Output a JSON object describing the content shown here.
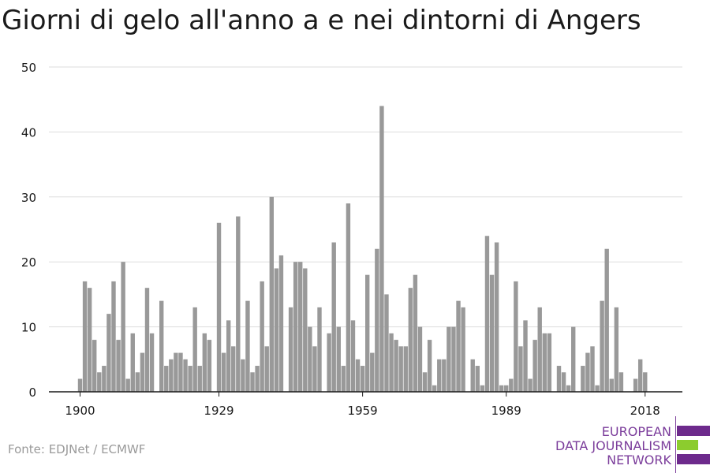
{
  "title": "Giorni di gelo all'anno a e nei dintorni di Angers",
  "source": "Fonte: EDJNet / ECMWF",
  "logo": {
    "line1": "EUROPEAN",
    "line2": "DATA JOURNALISM",
    "line3": "NETWORK",
    "colors": {
      "purple": "#6d2a8c",
      "green": "#8ccc2e",
      "text": "#7b3d9b"
    }
  },
  "colors": {
    "bar": "#999999",
    "grid": "#dddddd",
    "axis": "#1a1a1a"
  },
  "chart_data": {
    "type": "bar",
    "title": "Giorni di gelo all'anno a e nei dintorni di Angers",
    "xlabel": "",
    "ylabel": "",
    "x_range": [
      1900,
      2018
    ],
    "ylim": [
      0,
      50
    ],
    "yticks": [
      0,
      10,
      20,
      30,
      40,
      50
    ],
    "xticks": [
      1900,
      1929,
      1959,
      1989,
      2018
    ],
    "grid": true,
    "x": [
      1900,
      1901,
      1902,
      1903,
      1904,
      1905,
      1906,
      1907,
      1908,
      1909,
      1910,
      1911,
      1912,
      1913,
      1914,
      1915,
      1916,
      1917,
      1918,
      1919,
      1920,
      1921,
      1922,
      1923,
      1924,
      1925,
      1926,
      1927,
      1928,
      1929,
      1930,
      1931,
      1932,
      1933,
      1934,
      1935,
      1936,
      1937,
      1938,
      1939,
      1940,
      1941,
      1942,
      1943,
      1944,
      1945,
      1946,
      1947,
      1948,
      1949,
      1950,
      1951,
      1952,
      1953,
      1954,
      1955,
      1956,
      1957,
      1958,
      1959,
      1960,
      1961,
      1962,
      1963,
      1964,
      1965,
      1966,
      1967,
      1968,
      1969,
      1970,
      1971,
      1972,
      1973,
      1974,
      1975,
      1976,
      1977,
      1978,
      1979,
      1980,
      1981,
      1982,
      1983,
      1984,
      1985,
      1986,
      1987,
      1988,
      1989,
      1990,
      1991,
      1992,
      1993,
      1994,
      1995,
      1996,
      1997,
      1998,
      1999,
      2000,
      2001,
      2002,
      2003,
      2004,
      2005,
      2006,
      2007,
      2008,
      2009,
      2010,
      2011,
      2012,
      2013,
      2014,
      2015,
      2016,
      2017,
      2018
    ],
    "values": [
      2,
      17,
      16,
      8,
      3,
      4,
      12,
      17,
      8,
      20,
      2,
      9,
      3,
      6,
      16,
      9,
      0,
      14,
      4,
      5,
      6,
      6,
      5,
      4,
      13,
      4,
      9,
      8,
      0,
      26,
      6,
      11,
      7,
      27,
      5,
      14,
      3,
      4,
      17,
      7,
      30,
      19,
      21,
      0,
      13,
      20,
      20,
      19,
      10,
      7,
      13,
      0,
      9,
      23,
      10,
      4,
      29,
      11,
      5,
      4,
      18,
      6,
      22,
      44,
      15,
      9,
      8,
      7,
      7,
      16,
      18,
      10,
      3,
      8,
      1,
      5,
      5,
      10,
      10,
      14,
      13,
      0,
      5,
      4,
      1,
      24,
      18,
      23,
      1,
      1,
      2,
      17,
      7,
      11,
      2,
      8,
      13,
      9,
      9,
      0,
      4,
      3,
      1,
      10,
      0,
      4,
      6,
      7,
      1,
      14,
      22,
      2,
      13,
      3,
      0,
      0,
      2,
      5,
      3
    ]
  }
}
